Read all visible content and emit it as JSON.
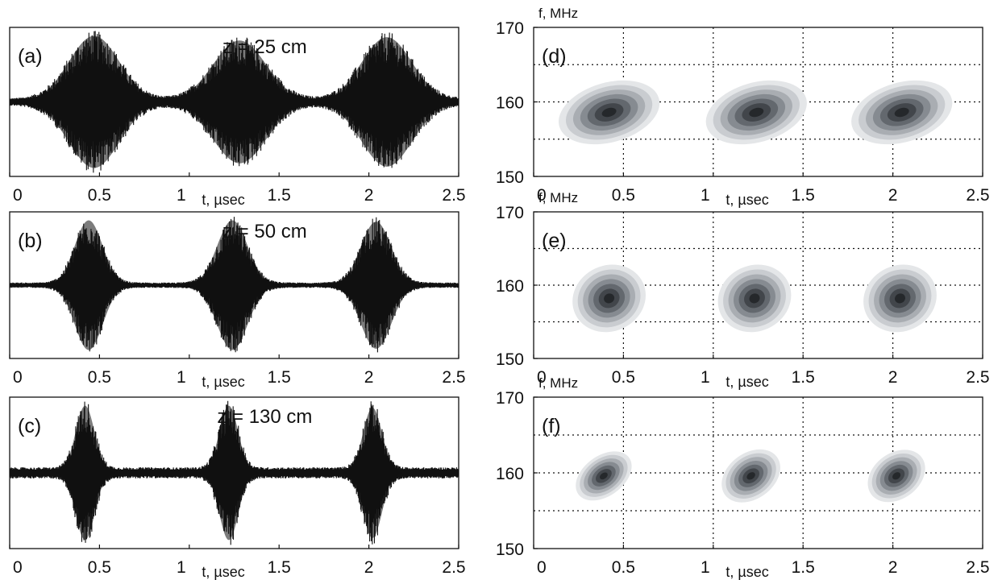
{
  "chart_data": [
    {
      "type": "line",
      "panel": "(a)",
      "annotation": "z = 25 cm",
      "xlabel": "t, µsec",
      "ylabel": "",
      "xlim": [
        0,
        2.5
      ],
      "xticks": [
        "0",
        "0.5",
        "1",
        "1.5",
        "2",
        "2.5"
      ],
      "grid": false,
      "baseline_noise": 0.05,
      "pulses": [
        {
          "center": 0.47,
          "width": 0.2,
          "amplitude": 1.0
        },
        {
          "center": 1.28,
          "width": 0.21,
          "amplitude": 0.93
        },
        {
          "center": 2.1,
          "width": 0.2,
          "amplitude": 0.98
        }
      ]
    },
    {
      "type": "line",
      "panel": "(b)",
      "annotation": "z = 50 cm",
      "xlabel": "t, µsec",
      "ylabel": "",
      "xlim": [
        0,
        2.5
      ],
      "xticks": [
        "0",
        "0.5",
        "1",
        "1.5",
        "2",
        "2.5"
      ],
      "grid": false,
      "baseline_noise": 0.04,
      "pulses": [
        {
          "center": 0.44,
          "width": 0.11,
          "amplitude": 1.0
        },
        {
          "center": 1.24,
          "width": 0.12,
          "amplitude": 1.0
        },
        {
          "center": 2.04,
          "width": 0.12,
          "amplitude": 0.98
        }
      ]
    },
    {
      "type": "line",
      "panel": "(c)",
      "annotation": "z = 130 cm",
      "xlabel": "t, µsec",
      "ylabel": "",
      "xlim": [
        0,
        2.5
      ],
      "xticks": [
        "0",
        "0.5",
        "1",
        "1.5",
        "2",
        "2.5"
      ],
      "grid": false,
      "baseline_noise": 0.08,
      "pulses": [
        {
          "center": 0.42,
          "width": 0.075,
          "amplitude": 1.0
        },
        {
          "center": 1.22,
          "width": 0.075,
          "amplitude": 1.0
        },
        {
          "center": 2.02,
          "width": 0.075,
          "amplitude": 0.97
        }
      ]
    },
    {
      "type": "heatmap",
      "panel": "(d)",
      "xlabel": "t, µsec",
      "ylabel": "f, MHz",
      "xlim": [
        0,
        2.5
      ],
      "ylim": [
        150,
        170
      ],
      "xticks": [
        "0",
        "0.5",
        "1",
        "1.5",
        "2",
        "2.5"
      ],
      "yticks": [
        "150",
        "160",
        "170"
      ],
      "grid": true,
      "blobs": [
        {
          "t": 0.42,
          "f": 158.6,
          "t_spread": 0.18,
          "f_spread": 3.2,
          "tilt_deg": -35
        },
        {
          "t": 1.24,
          "f": 158.6,
          "t_spread": 0.18,
          "f_spread": 3.2,
          "tilt_deg": -35
        },
        {
          "t": 2.05,
          "f": 158.6,
          "t_spread": 0.18,
          "f_spread": 3.2,
          "tilt_deg": -35
        }
      ]
    },
    {
      "type": "heatmap",
      "panel": "(e)",
      "xlabel": "t, µsec",
      "ylabel": "f, MHz",
      "xlim": [
        0,
        2.5
      ],
      "ylim": [
        150,
        170
      ],
      "xticks": [
        "0",
        "0.5",
        "1",
        "1.5",
        "2",
        "2.5"
      ],
      "yticks": [
        "150",
        "160",
        "170"
      ],
      "grid": true,
      "blobs": [
        {
          "t": 0.42,
          "f": 158.2,
          "t_spread": 0.13,
          "f_spread": 3.6,
          "tilt_deg": -55
        },
        {
          "t": 1.23,
          "f": 158.2,
          "t_spread": 0.13,
          "f_spread": 3.6,
          "tilt_deg": -55
        },
        {
          "t": 2.04,
          "f": 158.2,
          "t_spread": 0.13,
          "f_spread": 3.6,
          "tilt_deg": -55
        }
      ]
    },
    {
      "type": "heatmap",
      "panel": "(f)",
      "xlabel": "t, µsec",
      "ylabel": "f, MHz",
      "xlim": [
        0,
        2.5
      ],
      "ylim": [
        150,
        170
      ],
      "xticks": [
        "0",
        "0.5",
        "1",
        "1.5",
        "2",
        "2.5"
      ],
      "yticks": [
        "150",
        "160",
        "170"
      ],
      "grid": true,
      "blobs": [
        {
          "t": 0.39,
          "f": 159.6,
          "t_spread": 0.07,
          "f_spread": 3.3,
          "tilt_deg": -80
        },
        {
          "t": 1.21,
          "f": 159.6,
          "t_spread": 0.08,
          "f_spread": 3.4,
          "tilt_deg": -80
        },
        {
          "t": 2.02,
          "f": 159.6,
          "t_spread": 0.08,
          "f_spread": 3.3,
          "tilt_deg": -80
        }
      ]
    }
  ]
}
